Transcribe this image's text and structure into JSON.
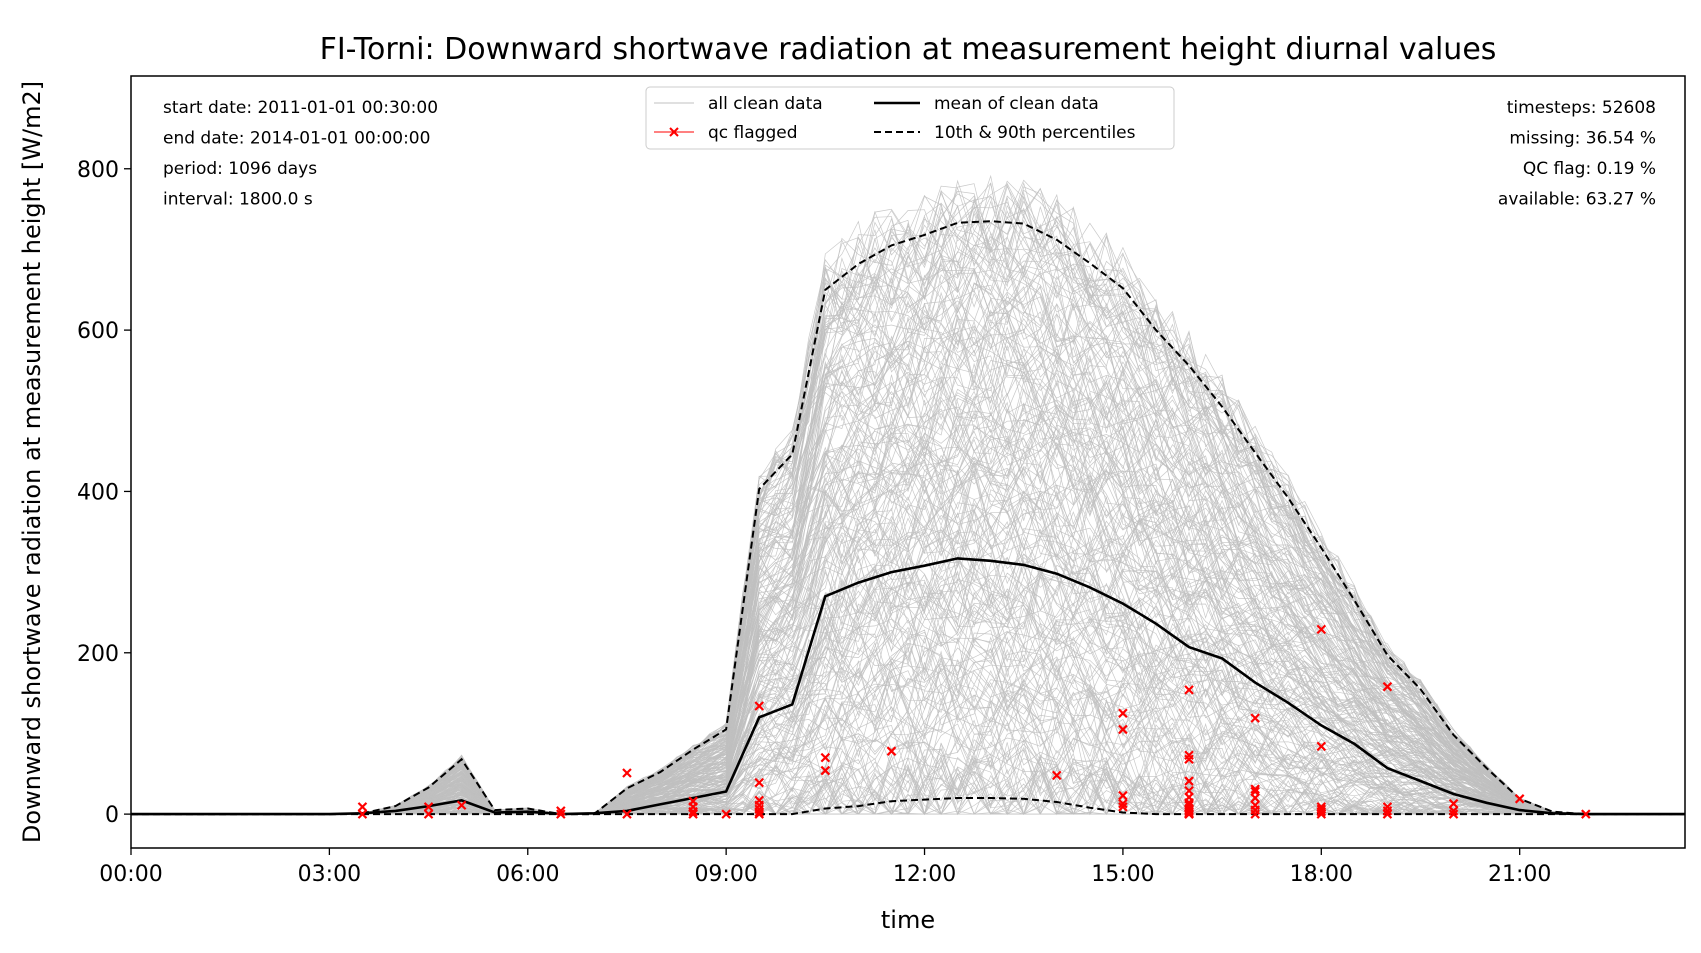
{
  "chart_data": {
    "type": "line",
    "title": "FI-Torni: Downward shortwave radiation at measurement height diurnal values",
    "xlabel": "time",
    "ylabel": "Downward shortwave radiation at measurement height [W/m2]",
    "xlim_hours": [
      0,
      23.5
    ],
    "ylim": [
      -42,
      915
    ],
    "x_ticks": [
      {
        "hour": 0,
        "label": "00:00"
      },
      {
        "hour": 3,
        "label": "03:00"
      },
      {
        "hour": 6,
        "label": "06:00"
      },
      {
        "hour": 9,
        "label": "09:00"
      },
      {
        "hour": 12,
        "label": "12:00"
      },
      {
        "hour": 15,
        "label": "15:00"
      },
      {
        "hour": 18,
        "label": "18:00"
      },
      {
        "hour": 21,
        "label": "21:00"
      }
    ],
    "y_ticks": [
      {
        "value": 0,
        "label": "0"
      },
      {
        "value": 200,
        "label": "200"
      },
      {
        "value": 400,
        "label": "400"
      },
      {
        "value": 600,
        "label": "600"
      },
      {
        "value": 800,
        "label": "800"
      }
    ],
    "grid": false,
    "legend": {
      "placement": "top-center",
      "entries": [
        {
          "label": "all clean data",
          "style": "thin-gray-line"
        },
        {
          "label": "qc flagged",
          "style": "red-x-line"
        },
        {
          "label": "mean of clean data",
          "style": "thick-black-line"
        },
        {
          "label": "10th & 90th percentiles",
          "style": "black-dashed-line"
        }
      ]
    },
    "info_left": [
      "start date: 2011-01-01 00:30:00",
      "end date: 2014-01-01 00:00:00",
      "period: 1096 days",
      "interval: 1800.0 s"
    ],
    "info_right": [
      "timesteps: 52608",
      "missing: 36.54 %",
      "QC flag: 0.19 %",
      "available: 63.27 %"
    ],
    "colors": {
      "clean": "#c0c0c0",
      "qc": "#ff0000",
      "mean": "#000000",
      "percentile": "#000000"
    },
    "series": [
      {
        "name": "mean of clean data",
        "x": [
          0,
          0.5,
          1,
          1.5,
          2,
          2.5,
          3,
          3.5,
          4,
          4.5,
          5,
          5.5,
          6,
          6.5,
          7,
          7.5,
          8,
          8.5,
          9,
          9.5,
          10,
          10.5,
          11,
          11.5,
          12,
          12.5,
          13,
          13.5,
          14,
          14.5,
          15,
          15.5,
          16,
          16.5,
          17,
          17.5,
          18,
          18.5,
          19,
          19.5,
          20,
          20.5,
          21,
          21.5,
          22,
          22.5,
          23,
          23.5
        ],
        "y": [
          0,
          0,
          0,
          0,
          0,
          0,
          0,
          1,
          4,
          10,
          17,
          2,
          3,
          0,
          1,
          4,
          12,
          20,
          28,
          120,
          136,
          270,
          287,
          300,
          308,
          317,
          314,
          309,
          298,
          281,
          261,
          236,
          207,
          193,
          163,
          138,
          110,
          87,
          57,
          41,
          25,
          14,
          5,
          1,
          0,
          0,
          0,
          0
        ]
      },
      {
        "name": "10th & 90th percentiles",
        "x": [
          0,
          0.5,
          1,
          1.5,
          2,
          2.5,
          3,
          3.5,
          4,
          4.5,
          5,
          5.5,
          6,
          6.5,
          7,
          7.5,
          8,
          8.5,
          9,
          9.5,
          10,
          10.5,
          11,
          11.5,
          12,
          12.5,
          13,
          13.5,
          14,
          14.5,
          15,
          15.5,
          16,
          16.5,
          17,
          17.5,
          18,
          18.5,
          19,
          19.5,
          20,
          20.5,
          21,
          21.5,
          22,
          22.5,
          23,
          23.5
        ],
        "y": [
          0,
          0,
          0,
          0,
          0,
          0,
          0,
          1,
          10,
          33,
          68,
          5,
          7,
          0,
          0,
          32,
          52,
          80,
          105,
          403,
          446,
          650,
          682,
          705,
          718,
          733,
          735,
          732,
          712,
          683,
          652,
          600,
          556,
          505,
          448,
          392,
          330,
          265,
          197,
          155,
          98,
          57,
          19,
          3,
          0,
          0,
          0,
          0
        ]
      },
      {
        "name": "10th & 90th percentiles",
        "x": [
          0,
          0.5,
          1,
          1.5,
          2,
          2.5,
          3,
          3.5,
          4,
          4.5,
          5,
          5.5,
          6,
          6.5,
          7,
          7.5,
          8,
          8.5,
          9,
          9.5,
          10,
          10.5,
          11,
          11.5,
          12,
          12.5,
          13,
          13.5,
          14,
          14.5,
          15,
          15.5,
          16,
          16.5,
          17,
          17.5,
          18,
          18.5,
          19,
          19.5,
          20,
          20.5,
          21,
          21.5,
          22,
          22.5,
          23,
          23.5
        ],
        "y": [
          0,
          0,
          0,
          0,
          0,
          0,
          0,
          0,
          0,
          0,
          0,
          0,
          0,
          0,
          0,
          0,
          0,
          0,
          0,
          0,
          0,
          7,
          10,
          16,
          18,
          20,
          20,
          19,
          15,
          8,
          2,
          0,
          0,
          0,
          0,
          0,
          0,
          0,
          0,
          0,
          0,
          0,
          0,
          0,
          0,
          0,
          0,
          0
        ]
      },
      {
        "name": "qc flagged",
        "x": [
          3.5,
          3.5,
          4.5,
          4.5,
          5,
          6.5,
          6.5,
          7.5,
          7.5,
          8.5,
          8.5,
          8.5,
          8.5,
          9,
          9.5,
          9.5,
          9.5,
          9.5,
          9.5,
          9.5,
          9.5,
          10.5,
          10.5,
          11.5,
          14,
          15,
          15,
          15,
          15,
          15,
          16,
          16,
          16,
          16,
          16,
          16,
          16,
          16,
          16,
          16,
          16,
          16,
          16,
          16,
          17,
          17,
          17,
          17,
          17,
          17,
          17,
          18,
          18,
          18,
          18,
          18,
          18,
          19,
          19,
          19,
          19,
          20,
          20,
          20,
          21,
          22
        ],
        "y": [
          9,
          0,
          9,
          0,
          11,
          4,
          0,
          51,
          0,
          16,
          9,
          3,
          0,
          0,
          134,
          39,
          17,
          11,
          6,
          2,
          0,
          70,
          54,
          78,
          48,
          125,
          105,
          23,
          13,
          9,
          154,
          73,
          68,
          41,
          29,
          21,
          14,
          11,
          7,
          5,
          3,
          1,
          0,
          0,
          119,
          31,
          28,
          20,
          11,
          5,
          0,
          229,
          84,
          9,
          6,
          3,
          0,
          158,
          9,
          4,
          0,
          13,
          4,
          0,
          19,
          0
        ]
      }
    ]
  }
}
